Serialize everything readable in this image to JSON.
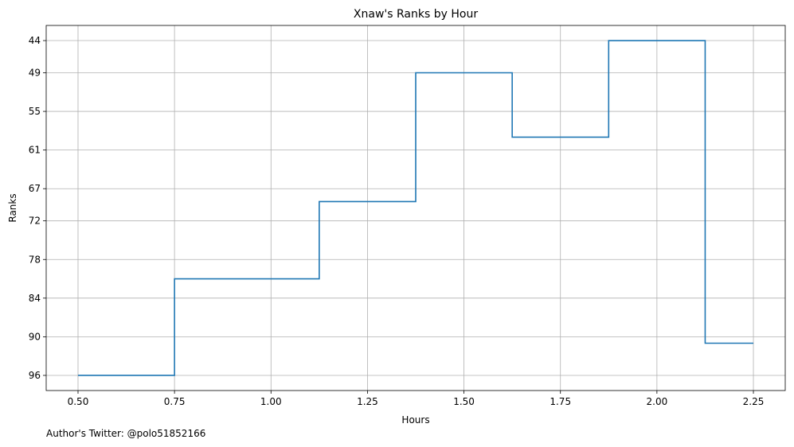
{
  "chart_data": {
    "type": "line",
    "drawstyle": "steps-mid",
    "title": "Xnaw's Ranks by Hour",
    "xlabel": "Hours",
    "ylabel": "Ranks",
    "x": [
      0.5,
      1.0,
      1.25,
      1.5,
      1.75,
      2.0,
      2.25
    ],
    "y": [
      96,
      81,
      69,
      49,
      59,
      44,
      91
    ],
    "xlim": [
      0.4175,
      2.3325
    ],
    "ylim": [
      98.35,
      41.65
    ],
    "y_inverted": true,
    "xticks": [
      0.5,
      0.75,
      1.0,
      1.25,
      1.5,
      1.75,
      2.0,
      2.25
    ],
    "xtick_labels": [
      "0.50",
      "0.75",
      "1.00",
      "1.25",
      "1.50",
      "1.75",
      "2.00",
      "2.25"
    ],
    "yticks": [
      44,
      49,
      55,
      61,
      67,
      72,
      78,
      84,
      90,
      96
    ],
    "ytick_labels": [
      "44",
      "49",
      "55",
      "61",
      "67",
      "72",
      "78",
      "84",
      "90",
      "96"
    ],
    "grid": true,
    "line_color": "#1f77b4",
    "grid_color": "#b0b0b0"
  },
  "footer": {
    "text": "Author's Twitter: @polo51852166"
  }
}
